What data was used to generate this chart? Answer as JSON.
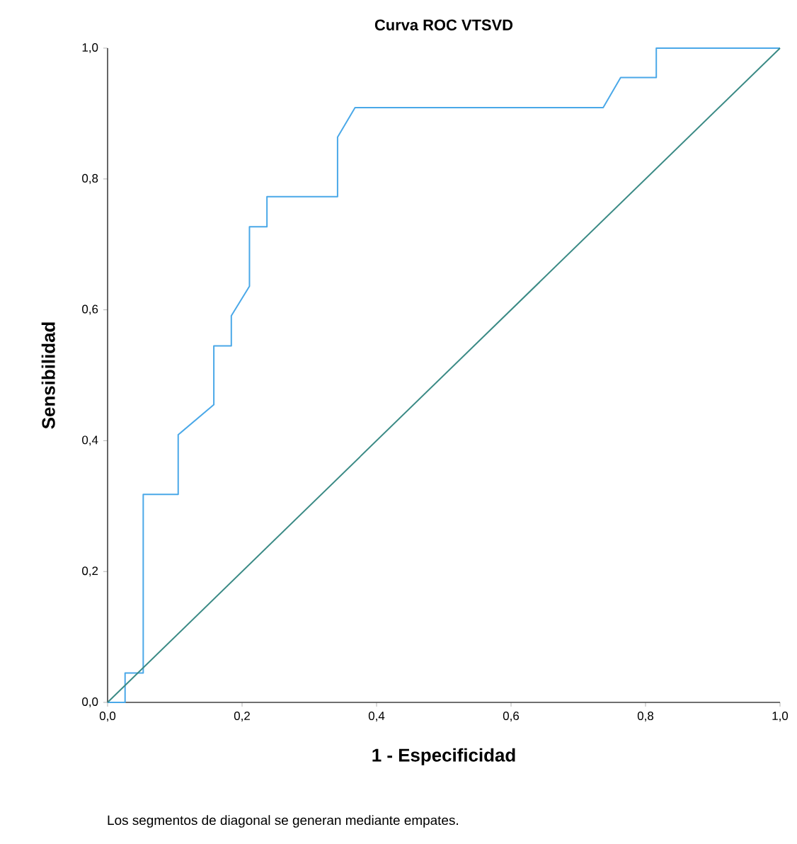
{
  "chart_data": {
    "type": "line",
    "title": "Curva ROC VTSVD",
    "xlabel": "1 - Especificidad",
    "ylabel": "Sensibilidad",
    "annotations": [
      "Los segmentos de diagonal se generan mediante empates."
    ],
    "xlim": [
      0,
      1
    ],
    "ylim": [
      0,
      1
    ],
    "xticks": [
      {
        "value": 0,
        "label": "0,0"
      },
      {
        "value": 0.2,
        "label": "0,2"
      },
      {
        "value": 0.4,
        "label": "0,4"
      },
      {
        "value": 0.6,
        "label": "0,6"
      },
      {
        "value": 0.8,
        "label": "0,8"
      },
      {
        "value": 1,
        "label": "1,0"
      }
    ],
    "yticks": [
      {
        "value": 0,
        "label": "0,0"
      },
      {
        "value": 0.2,
        "label": "0,2"
      },
      {
        "value": 0.4,
        "label": "0,4"
      },
      {
        "value": 0.6,
        "label": "0,6"
      },
      {
        "value": 0.8,
        "label": "0,8"
      },
      {
        "value": 1,
        "label": "1,0"
      }
    ],
    "marker": "none",
    "line_style": "solid",
    "series": [
      {
        "color": "#4aa8e8",
        "x": [
          0,
          0.026,
          0.026,
          0.053,
          0.053,
          0.105,
          0.105,
          0.158,
          0.158,
          0.184,
          0.184,
          0.211,
          0.211,
          0.237,
          0.237,
          0.342,
          0.342,
          0.368,
          0.737,
          0.763,
          0.816,
          0.816,
          1
        ],
        "values": [
          0,
          0,
          0.045,
          0.045,
          0.318,
          0.318,
          0.409,
          0.455,
          0.545,
          0.545,
          0.591,
          0.636,
          0.727,
          0.727,
          0.773,
          0.773,
          0.864,
          0.909,
          0.909,
          0.955,
          0.955,
          1,
          1
        ]
      },
      {
        "color": "#3a8a85",
        "x": [
          0,
          1
        ],
        "values": [
          0,
          1
        ]
      }
    ]
  }
}
